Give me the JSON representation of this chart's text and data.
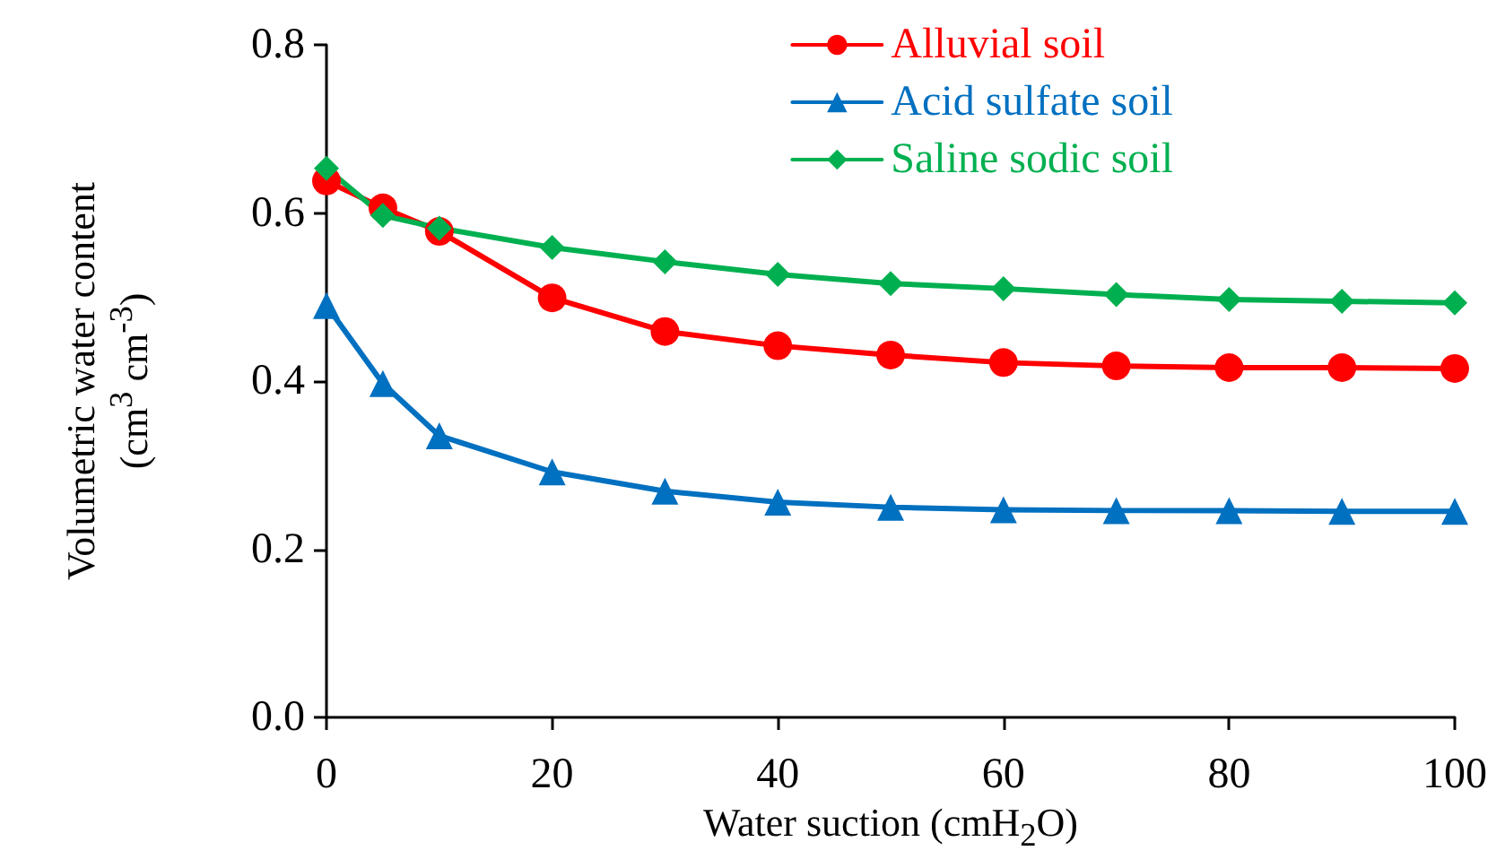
{
  "chart_data": {
    "type": "line",
    "xlabel": "Water suction (cmH$_{2}$O)",
    "ylabel": "Volumetric water content\n(cm$^{3}$ cm$^{-3}$)",
    "x": [
      0,
      5,
      10,
      20,
      30,
      40,
      50,
      60,
      70,
      80,
      90,
      100
    ],
    "series": [
      {
        "name": "Alluvial soil",
        "color": "#ff0000",
        "marker": "circle",
        "values": [
          0.638,
          0.606,
          0.578,
          0.499,
          0.459,
          0.442,
          0.431,
          0.422,
          0.418,
          0.416,
          0.416,
          0.415
        ]
      },
      {
        "name": "Acid sulfate soil",
        "color": "#0070c0",
        "marker": "triangle",
        "values": [
          0.49,
          0.397,
          0.335,
          0.292,
          0.269,
          0.256,
          0.25,
          0.247,
          0.246,
          0.246,
          0.245,
          0.245
        ]
      },
      {
        "name": "Saline sodic soil",
        "color": "#00b050",
        "marker": "diamond",
        "values": [
          0.653,
          0.597,
          0.582,
          0.559,
          0.542,
          0.527,
          0.516,
          0.51,
          0.503,
          0.497,
          0.495,
          0.493
        ]
      }
    ],
    "xlim": [
      0,
      100
    ],
    "xticks": [
      0,
      20,
      40,
      60,
      80,
      100
    ],
    "ylim": [
      0,
      0.8
    ],
    "yticks": [
      {
        "value": 0,
        "label": "0.0"
      },
      0.2,
      0.4,
      0.6,
      0.8
    ],
    "grid": false,
    "legend": "top right",
    "line_style": "solid"
  }
}
